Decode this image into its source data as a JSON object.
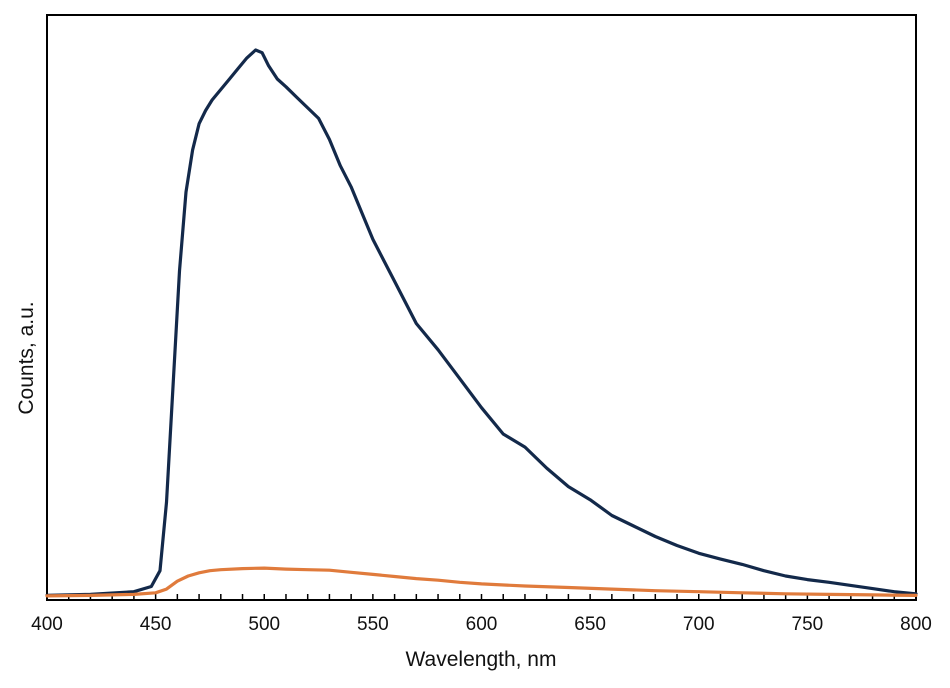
{
  "chart_data": {
    "type": "line",
    "title": "",
    "xlabel": "Wavelength, nm",
    "ylabel": "Counts, a.u.",
    "xlim": [
      400,
      800
    ],
    "ylim": [
      0,
      100
    ],
    "x_ticks": [
      400,
      450,
      500,
      550,
      600,
      650,
      700,
      750,
      800
    ],
    "x_minor_step": 10,
    "y_tick_labels": false,
    "grid": false,
    "legend": "none",
    "series": [
      {
        "color": "#13294a",
        "x": [
          400,
          420,
          440,
          448,
          452,
          455,
          458,
          461,
          464,
          467,
          470,
          473,
          476,
          480,
          484,
          488,
          492,
          496,
          499,
          502,
          506,
          510,
          515,
          520,
          525,
          530,
          535,
          540,
          545,
          550,
          560,
          570,
          580,
          590,
          600,
          610,
          620,
          630,
          640,
          650,
          660,
          670,
          680,
          690,
          700,
          710,
          720,
          730,
          740,
          750,
          760,
          770,
          780,
          790,
          800
        ],
        "y": [
          0.3,
          0.5,
          1.0,
          2.0,
          5,
          18,
          40,
          62,
          77,
          85,
          90,
          92.5,
          94.5,
          96.5,
          98.5,
          100.5,
          102.5,
          104.0,
          103.5,
          101,
          98.5,
          97,
          95,
          93,
          91,
          87,
          82,
          78,
          73,
          68,
          60,
          52,
          47,
          41.5,
          36,
          31,
          28.5,
          24.5,
          21,
          18.5,
          15.5,
          13.5,
          11.5,
          9.8,
          8.3,
          7.2,
          6.2,
          5.0,
          4.0,
          3.3,
          2.8,
          2.2,
          1.6,
          1.0,
          0.6
        ]
      },
      {
        "color": "#e07b3c",
        "x": [
          400,
          420,
          440,
          450,
          455,
          460,
          465,
          470,
          475,
          480,
          490,
          500,
          510,
          520,
          530,
          540,
          550,
          560,
          570,
          580,
          590,
          600,
          620,
          640,
          660,
          680,
          700,
          720,
          740,
          760,
          780,
          800
        ],
        "y": [
          0.2,
          0.3,
          0.5,
          0.8,
          1.5,
          3.0,
          4.0,
          4.6,
          5.0,
          5.2,
          5.4,
          5.5,
          5.3,
          5.2,
          5.1,
          4.7,
          4.3,
          3.9,
          3.5,
          3.2,
          2.8,
          2.5,
          2.1,
          1.8,
          1.5,
          1.2,
          1.0,
          0.8,
          0.6,
          0.5,
          0.4,
          0.3
        ]
      }
    ]
  }
}
